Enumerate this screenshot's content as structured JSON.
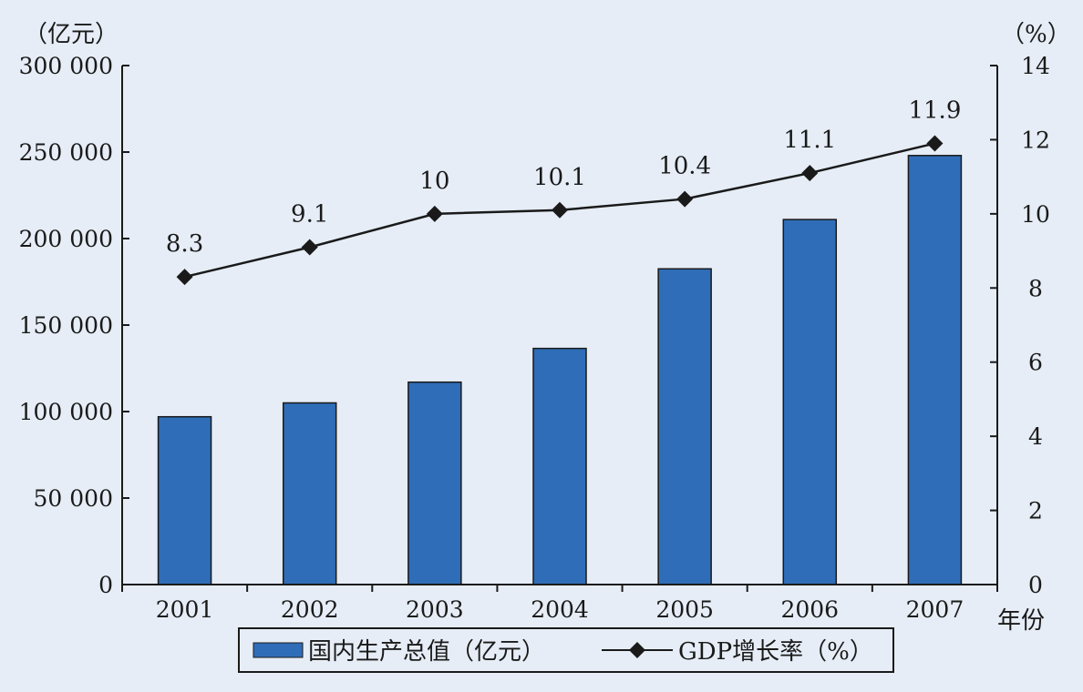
{
  "chart_data": {
    "type": "bar+line",
    "categories": [
      "2001",
      "2002",
      "2003",
      "2004",
      "2005",
      "2006",
      "2007"
    ],
    "series": [
      {
        "name": "国内生产总值（亿元）",
        "type": "bar",
        "axis": "left",
        "color": "#2f6db8",
        "values": [
          97000,
          105000,
          117000,
          136500,
          182500,
          211000,
          248000
        ]
      },
      {
        "name": "GDP增长率（%）",
        "type": "line",
        "axis": "right",
        "marker": "diamond",
        "color": "#1a1a1a",
        "values": [
          8.3,
          9.1,
          10,
          10.1,
          10.4,
          11.1,
          11.9
        ],
        "data_labels": [
          "8.3",
          "9.1",
          "10",
          "10.1",
          "10.4",
          "11.1",
          "11.9"
        ]
      }
    ],
    "y_left": {
      "unit": "（亿元）",
      "ylim": [
        0,
        300000
      ],
      "ticks": [
        0,
        50000,
        100000,
        150000,
        200000,
        250000,
        300000
      ],
      "tick_labels": [
        "0",
        "50 000",
        "100 000",
        "150 000",
        "200 000",
        "250 000",
        "300 000"
      ]
    },
    "y_right": {
      "unit": "（%）",
      "ylim": [
        0,
        14
      ],
      "ticks": [
        0,
        2,
        4,
        6,
        8,
        10,
        12,
        14
      ],
      "tick_labels": [
        "0",
        "2",
        "4",
        "6",
        "8",
        "10",
        "12",
        "14"
      ]
    },
    "x_unit": "年份",
    "legend_position": "bottom-center",
    "grid": false
  }
}
